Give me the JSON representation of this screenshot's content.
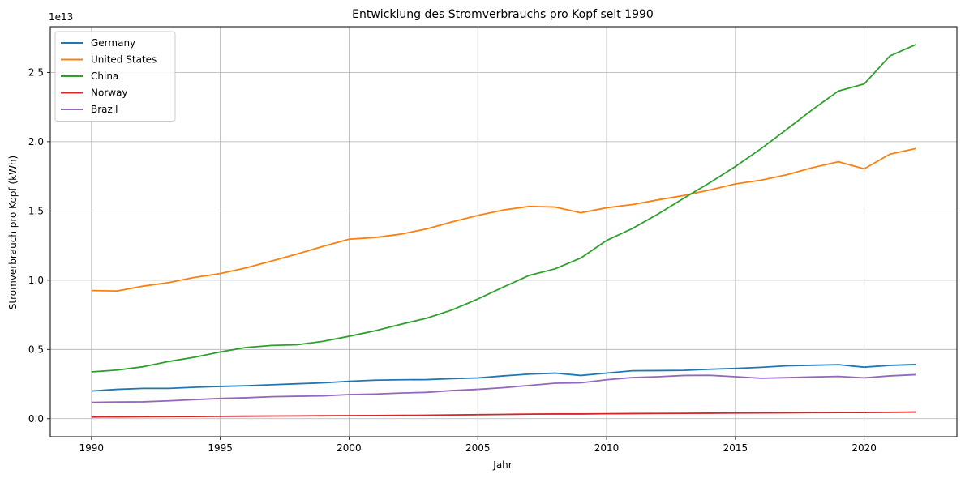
{
  "chart_data": {
    "type": "line",
    "title": "Entwicklung des Stromverbrauchs pro Kopf seit 1990",
    "xlabel": "Jahr",
    "ylabel": "Stromverbrauch pro Kopf (kWh)",
    "y_offset_label": "1e13",
    "xlim": [
      1988.4,
      1973.6
    ],
    "ylim": [
      -0.13,
      2.83
    ],
    "grid": true,
    "legend_position": "top-left",
    "x_ticks": [
      1990,
      1995,
      2000,
      2005,
      2010,
      2015,
      2020
    ],
    "x_tick_labels": [
      "1990",
      "1995",
      "2000",
      "2005",
      "2010",
      "2015",
      "2020"
    ],
    "y_ticks": [
      0.0,
      0.5,
      1.0,
      1.5,
      2.0,
      2.5
    ],
    "y_tick_labels": [
      "0.0",
      "0.5",
      "1.0",
      "1.5",
      "2.0",
      "2.5"
    ],
    "x": [
      1990,
      1991,
      1992,
      1993,
      1994,
      1995,
      1996,
      1997,
      1998,
      1999,
      2000,
      2001,
      2002,
      2003,
      2004,
      2005,
      2006,
      2007,
      2008,
      2009,
      2010,
      2011,
      2012,
      2013,
      2014,
      2015,
      2016,
      2017,
      2018,
      2019,
      2020,
      2021,
      2022
    ],
    "series": [
      {
        "name": "Germany",
        "color": "#1f77b4",
        "values": [
          0.2,
          0.212,
          0.219,
          0.219,
          0.227,
          0.233,
          0.238,
          0.245,
          0.252,
          0.259,
          0.27,
          0.278,
          0.281,
          0.282,
          0.289,
          0.294,
          0.309,
          0.322,
          0.329,
          0.312,
          0.329,
          0.346,
          0.347,
          0.349,
          0.357,
          0.363,
          0.371,
          0.382,
          0.386,
          0.39,
          0.372,
          0.385,
          0.391
        ]
      },
      {
        "name": "United States",
        "color": "#ff7f0e",
        "values": [
          0.925,
          0.922,
          0.957,
          0.983,
          1.02,
          1.048,
          1.089,
          1.139,
          1.19,
          1.245,
          1.296,
          1.308,
          1.332,
          1.37,
          1.421,
          1.468,
          1.507,
          1.533,
          1.528,
          1.487,
          1.523,
          1.546,
          1.58,
          1.612,
          1.651,
          1.695,
          1.722,
          1.762,
          1.813,
          1.855,
          1.804,
          1.91,
          1.95
        ]
      },
      {
        "name": "China",
        "color": "#2ca02c",
        "values": [
          0.338,
          0.351,
          0.375,
          0.413,
          0.444,
          0.482,
          0.514,
          0.529,
          0.534,
          0.559,
          0.595,
          0.634,
          0.681,
          0.725,
          0.785,
          0.864,
          0.951,
          1.035,
          1.082,
          1.16,
          1.287,
          1.373,
          1.478,
          1.592,
          1.703,
          1.821,
          1.95,
          2.09,
          2.233,
          2.366,
          2.417,
          2.619,
          2.701
        ]
      },
      {
        "name": "Norway",
        "color": "#d62728",
        "values": [
          0.012,
          0.013,
          0.014,
          0.015,
          0.016,
          0.017,
          0.018,
          0.019,
          0.02,
          0.021,
          0.022,
          0.023,
          0.024,
          0.025,
          0.027,
          0.029,
          0.031,
          0.033,
          0.034,
          0.034,
          0.036,
          0.037,
          0.038,
          0.039,
          0.04,
          0.041,
          0.042,
          0.043,
          0.044,
          0.045,
          0.045,
          0.046,
          0.048
        ]
      },
      {
        "name": "Brazil",
        "color": "#9467bd",
        "values": [
          0.118,
          0.121,
          0.122,
          0.129,
          0.138,
          0.146,
          0.151,
          0.159,
          0.162,
          0.165,
          0.174,
          0.178,
          0.185,
          0.19,
          0.203,
          0.212,
          0.224,
          0.24,
          0.256,
          0.259,
          0.281,
          0.297,
          0.303,
          0.312,
          0.313,
          0.303,
          0.292,
          0.296,
          0.301,
          0.305,
          0.295,
          0.309,
          0.318
        ]
      }
    ]
  }
}
